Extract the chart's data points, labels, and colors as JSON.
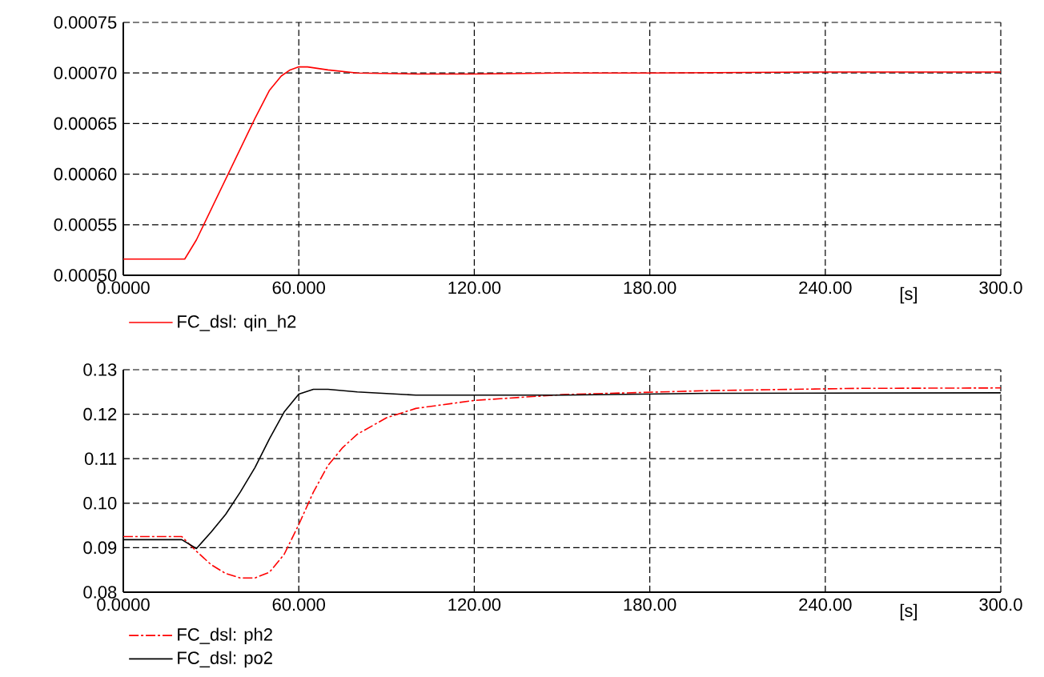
{
  "chart_data": [
    {
      "type": "line",
      "xlabel": "[s]",
      "xlim": [
        0,
        300
      ],
      "xticks": [
        {
          "value": 0,
          "label": "0.0000"
        },
        {
          "value": 60,
          "label": "60.000"
        },
        {
          "value": 120,
          "label": "120.00"
        },
        {
          "value": 180,
          "label": "180.00"
        },
        {
          "value": 240,
          "label": "240.00"
        },
        {
          "value": 300,
          "label": "300.0"
        }
      ],
      "ylim": [
        0.0005,
        0.00075
      ],
      "yticks": [
        {
          "value": 0.0005,
          "label": "0.00050"
        },
        {
          "value": 0.00055,
          "label": "0.00055"
        },
        {
          "value": 0.0006,
          "label": "0.00060"
        },
        {
          "value": 0.00065,
          "label": "0.00065"
        },
        {
          "value": 0.0007,
          "label": "0.00070"
        },
        {
          "value": 0.00075,
          "label": "0.00075"
        }
      ],
      "grid": true,
      "legend": "bottom left",
      "marker": "none",
      "series": [
        {
          "name": "FC_dsl: qin_h2",
          "color": "#ff0000",
          "line_style": "solid",
          "x": [
            0,
            21,
            25,
            30,
            35,
            40,
            45,
            50,
            54,
            57,
            60,
            63,
            70,
            80,
            100,
            120,
            150,
            180,
            240,
            300
          ],
          "values": [
            0.000516,
            0.000516,
            0.000535,
            0.000565,
            0.000595,
            0.000625,
            0.000655,
            0.000683,
            0.000697,
            0.000703,
            0.000706,
            0.000706,
            0.000703,
            0.0007,
            0.000699,
            0.000699,
            0.0007,
            0.0007,
            0.000701,
            0.000701
          ]
        }
      ]
    },
    {
      "type": "line",
      "xlabel": "[s]",
      "xlim": [
        0,
        300
      ],
      "xticks": [
        {
          "value": 0,
          "label": "0.0000"
        },
        {
          "value": 60,
          "label": "60.000"
        },
        {
          "value": 120,
          "label": "120.00"
        },
        {
          "value": 180,
          "label": "180.00"
        },
        {
          "value": 240,
          "label": "240.00"
        },
        {
          "value": 300,
          "label": "300.0"
        }
      ],
      "ylim": [
        0.08,
        0.13
      ],
      "yticks": [
        {
          "value": 0.08,
          "label": "0.08"
        },
        {
          "value": 0.09,
          "label": "0.09"
        },
        {
          "value": 0.1,
          "label": "0.10"
        },
        {
          "value": 0.11,
          "label": "0.11"
        },
        {
          "value": 0.12,
          "label": "0.12"
        },
        {
          "value": 0.13,
          "label": "0.13"
        }
      ],
      "grid": true,
      "legend": "bottom left",
      "marker": "none",
      "series": [
        {
          "name": "FC_dsl: ph2",
          "color": "#ff0000",
          "line_style": "dashed",
          "x": [
            0,
            20,
            25,
            30,
            35,
            40,
            45,
            50,
            55,
            60,
            65,
            70,
            75,
            80,
            90,
            100,
            120,
            150,
            200,
            250,
            300
          ],
          "values": [
            0.0925,
            0.0925,
            0.0892,
            0.0862,
            0.0842,
            0.0832,
            0.0832,
            0.0845,
            0.0885,
            0.0952,
            0.1025,
            0.1085,
            0.1125,
            0.1155,
            0.1192,
            0.1213,
            0.1231,
            0.1244,
            0.1253,
            0.1258,
            0.1259
          ]
        },
        {
          "name": "FC_dsl: po2",
          "color": "#000000",
          "line_style": "solid",
          "x": [
            0,
            20,
            25,
            30,
            35,
            40,
            45,
            50,
            55,
            60,
            65,
            70,
            80,
            100,
            150,
            200,
            300
          ],
          "values": [
            0.0918,
            0.0918,
            0.0898,
            0.0935,
            0.0975,
            0.1025,
            0.108,
            0.1145,
            0.1205,
            0.1245,
            0.1256,
            0.1256,
            0.125,
            0.1243,
            0.1243,
            0.1247,
            0.1248
          ]
        }
      ]
    }
  ]
}
